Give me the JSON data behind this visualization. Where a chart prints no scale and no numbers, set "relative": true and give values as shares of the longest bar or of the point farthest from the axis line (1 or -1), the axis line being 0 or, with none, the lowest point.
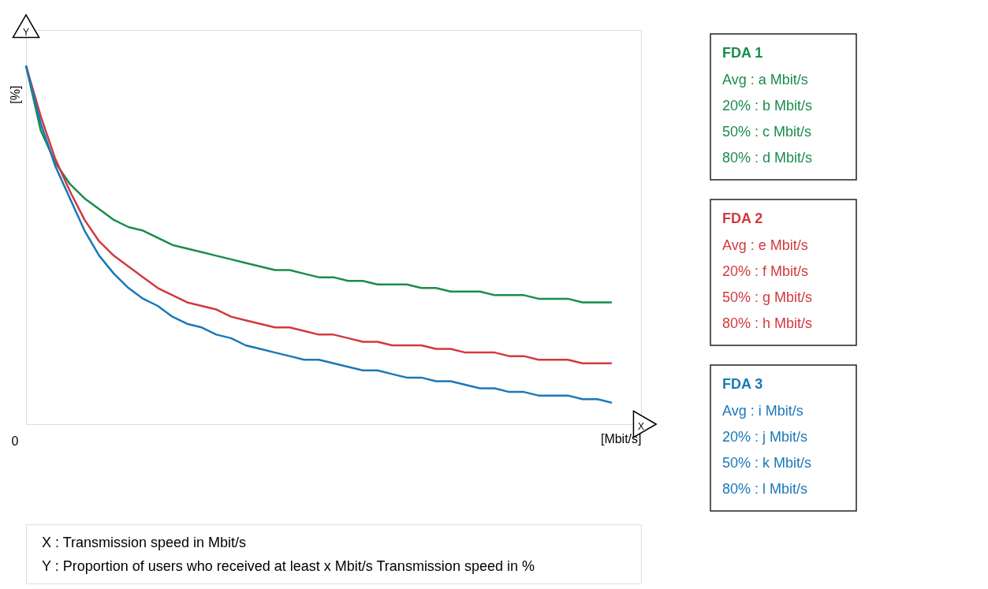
{
  "chart_data": {
    "type": "line",
    "relative": true,
    "xlabel": "[Mbit/s]",
    "ylabel": "[%]",
    "marker": "none",
    "line_style": "solid",
    "categories": [
      null,
      null,
      null,
      null,
      null,
      null,
      null,
      null,
      null,
      null,
      null,
      null,
      null,
      null,
      null,
      null,
      null,
      null,
      null,
      null,
      null,
      null,
      null,
      null,
      null,
      null,
      null,
      null,
      null,
      null,
      null,
      null,
      null,
      null,
      null,
      null,
      null,
      null,
      null,
      null,
      null,
      null,
      null
    ],
    "series": [
      {
        "name": "FDA 1",
        "color": "#1a8c4a",
        "values": [
          1,
          0.82,
          0.73,
          0.67,
          0.63,
          0.6,
          0.57,
          0.55,
          0.54,
          0.52,
          0.5,
          0.49,
          0.48,
          0.47,
          0.46,
          0.45,
          0.44,
          0.43,
          0.43,
          0.42,
          0.41,
          0.41,
          0.4,
          0.4,
          0.39,
          0.39,
          0.39,
          0.38,
          0.38,
          0.37,
          0.37,
          0.37,
          0.36,
          0.36,
          0.36,
          0.35,
          0.35,
          0.35,
          0.34,
          0.34,
          0.34,
          null,
          null
        ]
      },
      {
        "name": "FDA 2",
        "color": "#d2393f",
        "values": [
          1,
          0.86,
          0.74,
          0.65,
          0.57,
          0.51,
          0.47,
          0.44,
          0.41,
          0.38,
          0.36,
          0.34,
          0.33,
          0.32,
          0.3,
          0.29,
          0.28,
          0.27,
          0.27,
          0.26,
          0.25,
          0.25,
          0.24,
          0.23,
          0.23,
          0.22,
          0.22,
          0.22,
          0.21,
          0.21,
          0.2,
          0.2,
          0.2,
          0.19,
          0.19,
          0.18,
          0.18,
          0.18,
          0.17,
          0.17,
          0.17,
          null,
          null
        ]
      },
      {
        "name": "FDA 3",
        "color": "#1a78b8",
        "values": [
          1,
          0.84,
          0.72,
          0.63,
          0.54,
          0.47,
          0.42,
          0.38,
          0.35,
          0.33,
          0.3,
          0.28,
          0.27,
          0.25,
          0.24,
          0.22,
          0.21,
          0.2,
          0.19,
          0.18,
          0.18,
          0.17,
          0.16,
          0.15,
          0.15,
          0.14,
          0.13,
          0.13,
          0.12,
          0.12,
          0.11,
          0.1,
          0.1,
          0.09,
          0.09,
          0.08,
          0.08,
          0.08,
          0.07,
          0.07,
          0.06,
          null,
          null
        ]
      }
    ],
    "annotations": [
      "Y",
      "X",
      "0",
      "Avg : a Mbit/s",
      "20% : b Mbit/s",
      "50% : c Mbit/s",
      "80% : d Mbit/s",
      "Avg : e Mbit/s",
      "20% : f Mbit/s",
      "50% : g Mbit/s",
      "80% : h Mbit/s",
      "Avg : i Mbit/s",
      "20% : j Mbit/s",
      "50% : k Mbit/s",
      "80% : l Mbit/s",
      "X : Transmission speed in Mbit/s",
      "Y : Proportion of users who received at least x Mbit/s Transmission speed in %"
    ]
  }
}
